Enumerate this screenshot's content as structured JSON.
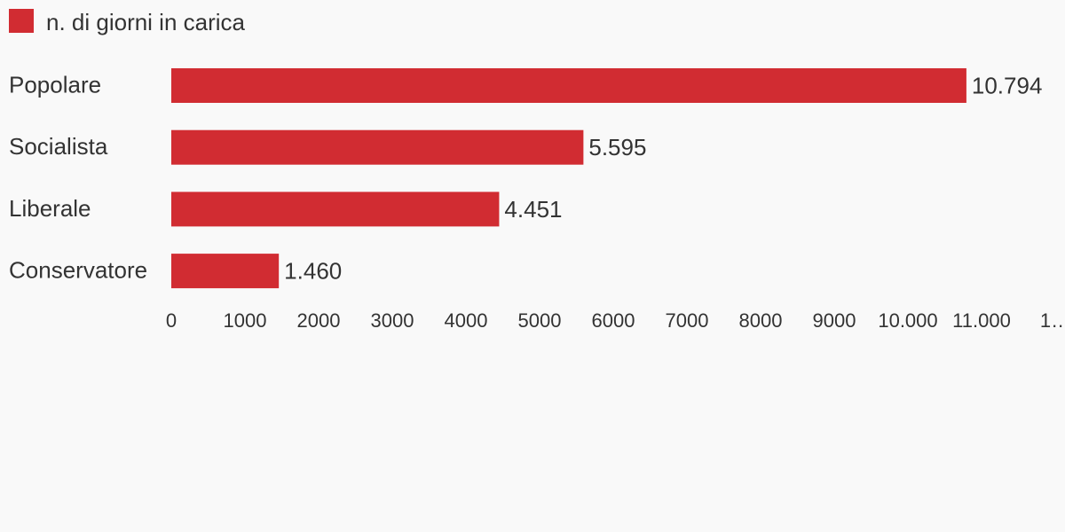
{
  "chart_data": {
    "type": "bar",
    "orientation": "horizontal",
    "legend": "n. di giorni in carica",
    "categories": [
      "Popolare",
      "Socialista",
      "Liberale",
      "Conservatore"
    ],
    "values": [
      10794,
      5595,
      4451,
      1460
    ],
    "value_labels": [
      "10.794",
      "5.595",
      "4.451",
      "1.460"
    ],
    "color": "#d12c32",
    "xlim": [
      0,
      12000
    ],
    "xticks": [
      0,
      1000,
      2000,
      3000,
      4000,
      5000,
      6000,
      7000,
      8000,
      9000,
      {
        "value": 10000,
        "label": "10.000"
      },
      {
        "value": 11000,
        "label": "11.000"
      },
      {
        "value": 12000,
        "label": "1…"
      }
    ],
    "grid": false
  }
}
